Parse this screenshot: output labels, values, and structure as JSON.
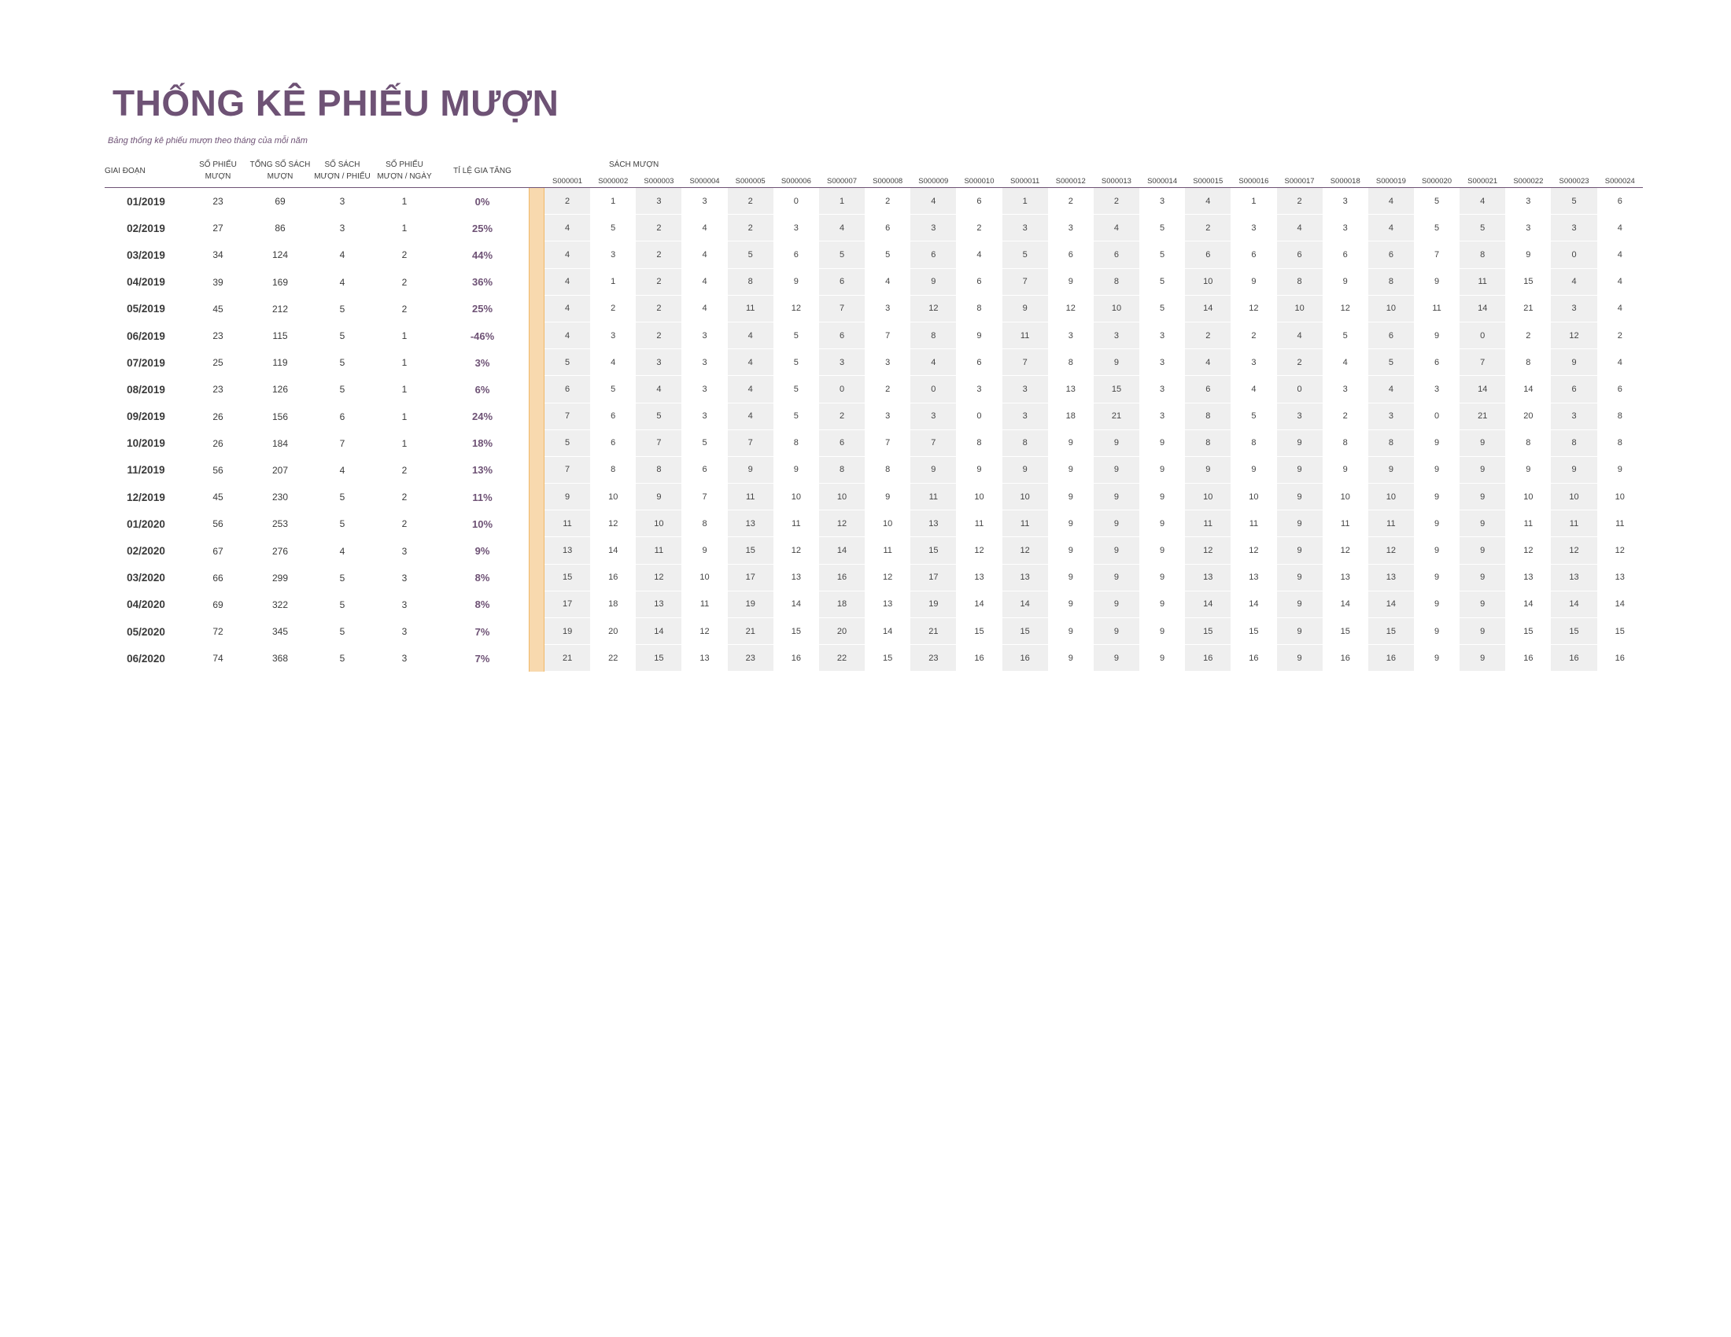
{
  "title": "THỐNG KÊ PHIẾU MƯỢN",
  "subtitle": "Bảng thống kê phiếu mượn theo tháng của mỗi năm",
  "headers": {
    "period": "GIAI ĐOẠN",
    "loans": "SỐ PHIẾU MƯỢN",
    "total_books": "TỔNG SỐ SÁCH MƯỢN",
    "books_per_loan": "SỐ SÁCH MƯỢN / PHIẾU",
    "loans_per_day": "SỐ PHIẾU MƯỢN / NGÀY",
    "growth": "TỈ LỆ GIA TĂNG",
    "borrowed_books": "SÁCH MƯỢN"
  },
  "book_ids": [
    "S000001",
    "S000002",
    "S000003",
    "S000004",
    "S000005",
    "S000006",
    "S000007",
    "S000008",
    "S000009",
    "S000010",
    "S000011",
    "S000012",
    "S000013",
    "S000014",
    "S000015",
    "S000016",
    "S000017",
    "S000018",
    "S000019",
    "S000020",
    "S000021",
    "S000022",
    "S000023",
    "S000024"
  ],
  "rows": [
    {
      "period": "01/2019",
      "loans": "23",
      "total": "69",
      "per_loan": "3",
      "per_day": "1",
      "growth": "0%",
      "books": [
        "2",
        "1",
        "3",
        "3",
        "2",
        "0",
        "1",
        "2",
        "4",
        "6",
        "1",
        "2",
        "2",
        "3",
        "4",
        "1",
        "2",
        "3",
        "4",
        "5",
        "4",
        "3",
        "5",
        "6"
      ]
    },
    {
      "period": "02/2019",
      "loans": "27",
      "total": "86",
      "per_loan": "3",
      "per_day": "1",
      "growth": "25%",
      "books": [
        "4",
        "5",
        "2",
        "4",
        "2",
        "3",
        "4",
        "6",
        "3",
        "2",
        "3",
        "3",
        "4",
        "5",
        "2",
        "3",
        "4",
        "3",
        "4",
        "5",
        "5",
        "3",
        "3",
        "4"
      ]
    },
    {
      "period": "03/2019",
      "loans": "34",
      "total": "124",
      "per_loan": "4",
      "per_day": "2",
      "growth": "44%",
      "books": [
        "4",
        "3",
        "2",
        "4",
        "5",
        "6",
        "5",
        "5",
        "6",
        "4",
        "5",
        "6",
        "6",
        "5",
        "6",
        "6",
        "6",
        "6",
        "6",
        "7",
        "8",
        "9",
        "0",
        "4"
      ]
    },
    {
      "period": "04/2019",
      "loans": "39",
      "total": "169",
      "per_loan": "4",
      "per_day": "2",
      "growth": "36%",
      "books": [
        "4",
        "1",
        "2",
        "4",
        "8",
        "9",
        "6",
        "4",
        "9",
        "6",
        "7",
        "9",
        "8",
        "5",
        "10",
        "9",
        "8",
        "9",
        "8",
        "9",
        "11",
        "15",
        "4",
        "4"
      ]
    },
    {
      "period": "05/2019",
      "loans": "45",
      "total": "212",
      "per_loan": "5",
      "per_day": "2",
      "growth": "25%",
      "books": [
        "4",
        "2",
        "2",
        "4",
        "11",
        "12",
        "7",
        "3",
        "12",
        "8",
        "9",
        "12",
        "10",
        "5",
        "14",
        "12",
        "10",
        "12",
        "10",
        "11",
        "14",
        "21",
        "3",
        "4"
      ]
    },
    {
      "period": "06/2019",
      "loans": "23",
      "total": "115",
      "per_loan": "5",
      "per_day": "1",
      "growth": "-46%",
      "books": [
        "4",
        "3",
        "2",
        "3",
        "4",
        "5",
        "6",
        "7",
        "8",
        "9",
        "11",
        "3",
        "3",
        "3",
        "2",
        "2",
        "4",
        "5",
        "6",
        "9",
        "0",
        "2",
        "12",
        "2"
      ]
    },
    {
      "period": "07/2019",
      "loans": "25",
      "total": "119",
      "per_loan": "5",
      "per_day": "1",
      "growth": "3%",
      "books": [
        "5",
        "4",
        "3",
        "3",
        "4",
        "5",
        "3",
        "3",
        "4",
        "6",
        "7",
        "8",
        "9",
        "3",
        "4",
        "3",
        "2",
        "4",
        "5",
        "6",
        "7",
        "8",
        "9",
        "4"
      ]
    },
    {
      "period": "08/2019",
      "loans": "23",
      "total": "126",
      "per_loan": "5",
      "per_day": "1",
      "growth": "6%",
      "books": [
        "6",
        "5",
        "4",
        "3",
        "4",
        "5",
        "0",
        "2",
        "0",
        "3",
        "3",
        "13",
        "15",
        "3",
        "6",
        "4",
        "0",
        "3",
        "4",
        "3",
        "14",
        "14",
        "6",
        "6"
      ]
    },
    {
      "period": "09/2019",
      "loans": "26",
      "total": "156",
      "per_loan": "6",
      "per_day": "1",
      "growth": "24%",
      "books": [
        "7",
        "6",
        "5",
        "3",
        "4",
        "5",
        "2",
        "3",
        "3",
        "0",
        "3",
        "18",
        "21",
        "3",
        "8",
        "5",
        "3",
        "2",
        "3",
        "0",
        "21",
        "20",
        "3",
        "8"
      ]
    },
    {
      "period": "10/2019",
      "loans": "26",
      "total": "184",
      "per_loan": "7",
      "per_day": "1",
      "growth": "18%",
      "books": [
        "5",
        "6",
        "7",
        "5",
        "7",
        "8",
        "6",
        "7",
        "7",
        "8",
        "8",
        "9",
        "9",
        "9",
        "8",
        "8",
        "9",
        "8",
        "8",
        "9",
        "9",
        "8",
        "8",
        "8"
      ]
    },
    {
      "period": "11/2019",
      "loans": "56",
      "total": "207",
      "per_loan": "4",
      "per_day": "2",
      "growth": "13%",
      "books": [
        "7",
        "8",
        "8",
        "6",
        "9",
        "9",
        "8",
        "8",
        "9",
        "9",
        "9",
        "9",
        "9",
        "9",
        "9",
        "9",
        "9",
        "9",
        "9",
        "9",
        "9",
        "9",
        "9",
        "9"
      ]
    },
    {
      "period": "12/2019",
      "loans": "45",
      "total": "230",
      "per_loan": "5",
      "per_day": "2",
      "growth": "11%",
      "books": [
        "9",
        "10",
        "9",
        "7",
        "11",
        "10",
        "10",
        "9",
        "11",
        "10",
        "10",
        "9",
        "9",
        "9",
        "10",
        "10",
        "9",
        "10",
        "10",
        "9",
        "9",
        "10",
        "10",
        "10"
      ]
    },
    {
      "period": "01/2020",
      "loans": "56",
      "total": "253",
      "per_loan": "5",
      "per_day": "2",
      "growth": "10%",
      "books": [
        "11",
        "12",
        "10",
        "8",
        "13",
        "11",
        "12",
        "10",
        "13",
        "11",
        "11",
        "9",
        "9",
        "9",
        "11",
        "11",
        "9",
        "11",
        "11",
        "9",
        "9",
        "11",
        "11",
        "11"
      ]
    },
    {
      "period": "02/2020",
      "loans": "67",
      "total": "276",
      "per_loan": "4",
      "per_day": "3",
      "growth": "9%",
      "books": [
        "13",
        "14",
        "11",
        "9",
        "15",
        "12",
        "14",
        "11",
        "15",
        "12",
        "12",
        "9",
        "9",
        "9",
        "12",
        "12",
        "9",
        "12",
        "12",
        "9",
        "9",
        "12",
        "12",
        "12"
      ]
    },
    {
      "period": "03/2020",
      "loans": "66",
      "total": "299",
      "per_loan": "5",
      "per_day": "3",
      "growth": "8%",
      "books": [
        "15",
        "16",
        "12",
        "10",
        "17",
        "13",
        "16",
        "12",
        "17",
        "13",
        "13",
        "9",
        "9",
        "9",
        "13",
        "13",
        "9",
        "13",
        "13",
        "9",
        "9",
        "13",
        "13",
        "13"
      ]
    },
    {
      "period": "04/2020",
      "loans": "69",
      "total": "322",
      "per_loan": "5",
      "per_day": "3",
      "growth": "8%",
      "books": [
        "17",
        "18",
        "13",
        "11",
        "19",
        "14",
        "18",
        "13",
        "19",
        "14",
        "14",
        "9",
        "9",
        "9",
        "14",
        "14",
        "9",
        "14",
        "14",
        "9",
        "9",
        "14",
        "14",
        "14"
      ]
    },
    {
      "period": "05/2020",
      "loans": "72",
      "total": "345",
      "per_loan": "5",
      "per_day": "3",
      "growth": "7%",
      "books": [
        "19",
        "20",
        "14",
        "12",
        "21",
        "15",
        "20",
        "14",
        "21",
        "15",
        "15",
        "9",
        "9",
        "9",
        "15",
        "15",
        "9",
        "15",
        "15",
        "9",
        "9",
        "15",
        "15",
        "15"
      ]
    },
    {
      "period": "06/2020",
      "loans": "74",
      "total": "368",
      "per_loan": "5",
      "per_day": "3",
      "growth": "7%",
      "books": [
        "21",
        "22",
        "15",
        "13",
        "23",
        "16",
        "22",
        "15",
        "23",
        "16",
        "16",
        "9",
        "9",
        "9",
        "16",
        "16",
        "9",
        "16",
        "16",
        "9",
        "9",
        "16",
        "16",
        "16"
      ]
    }
  ]
}
